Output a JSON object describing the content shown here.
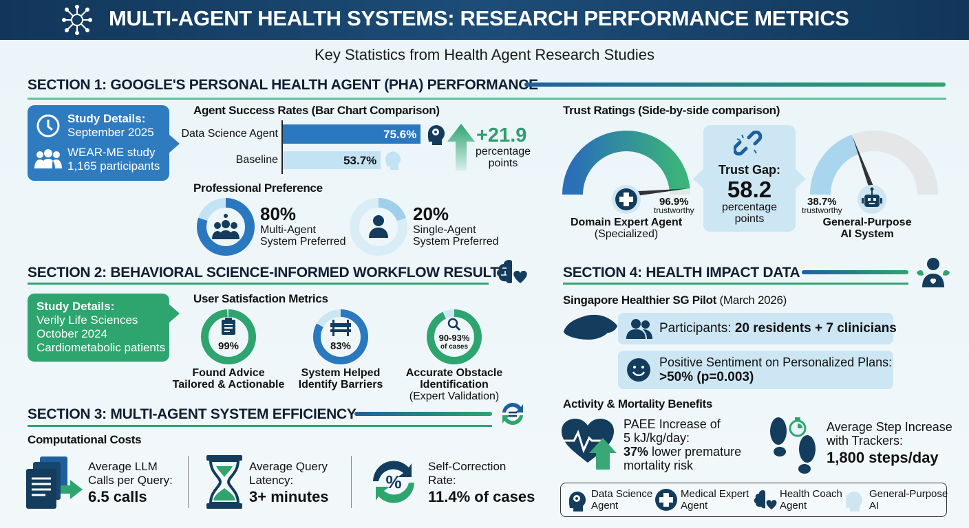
{
  "header": {
    "title": "MULTI-AGENT HEALTH SYSTEMS: RESEARCH PERFORMANCE METRICS",
    "icon": "network-agent-icon"
  },
  "subtitle": "Key Statistics from Health Agent Research Studies",
  "colors": {
    "navy": "#163f66",
    "blue": "#2a78c0",
    "light_blue": "#bfe0f3",
    "green": "#2ea56f",
    "dark_icon": "#143c5c",
    "grey": "#e4e6e8"
  },
  "section1": {
    "title": "SECTION 1: GOOGLE'S PERSONAL HEALTH AGENT (PHA) PERFORMANCE",
    "study": {
      "label": "Study Details:",
      "date": "September 2025",
      "study": "WEAR-ME study",
      "participants": "1,165 participants"
    },
    "bar_chart": {
      "title": "Agent Success Rates (Bar Chart Comparison)",
      "bars": [
        {
          "label": "Data Science Agent",
          "value": 75.6,
          "text": "75.6%"
        },
        {
          "label": "Baseline",
          "value": 53.7,
          "text": "53.7%"
        }
      ],
      "delta": "+21.9",
      "delta_unit_1": "percentage",
      "delta_unit_2": "points"
    },
    "preference": {
      "title": "Professional Preference",
      "items": [
        {
          "value": 80,
          "text": "80%",
          "l1": "Multi-Agent",
          "l2": "System Preferred"
        },
        {
          "value": 20,
          "text": "20%",
          "l1": "Single-Agent",
          "l2": "System Preferred"
        }
      ]
    },
    "trust": {
      "title": "Trust Ratings (Side-by-side comparison)",
      "expert": {
        "value": 96.9,
        "text": "96.9%",
        "sub": "trustworthy",
        "name": "Domain Expert Agent",
        "name2": "(Specialized)"
      },
      "general": {
        "value": 38.7,
        "text": "38.7%",
        "sub": "trustworthy",
        "name": "General-Purpose",
        "name2": "AI System"
      },
      "gap": {
        "label": "Trust Gap:",
        "value": "58.2",
        "u1": "percentage",
        "u2": "points"
      }
    }
  },
  "section2": {
    "title": "SECTION 2: BEHAVIORAL SCIENCE-INFORMED WORKFLOW RESULTS",
    "study": {
      "label": "Study Details:",
      "org": "Verily Life Sciences",
      "date": "October 2024",
      "pop": "Cardiometabolic patients"
    },
    "metrics_title": "User Satisfaction Metrics",
    "metrics": [
      {
        "value": 99,
        "text": "99%",
        "l1": "Found Advice",
        "l2": "Tailored & Actionable",
        "l3": "",
        "icon": "clipboard-icon"
      },
      {
        "value": 83,
        "text": "83%",
        "l1": "System Helped",
        "l2": "Identify Barriers",
        "l3": "",
        "icon": "barrier-icon"
      },
      {
        "value": 93,
        "text": "90-93%",
        "sub": "of cases",
        "l1": "Accurate Obstacle",
        "l2": "Identification",
        "l3": "(Expert Validation)",
        "icon": "magnifier-icon"
      }
    ]
  },
  "section3": {
    "title": "SECTION 3: MULTI-AGENT SYSTEM EFFICIENCY",
    "costs_title": "Computational Costs",
    "items": [
      {
        "l1": "Average LLM",
        "l2": "Calls per Query:",
        "value": "6.5 calls"
      },
      {
        "l1": "Average Query",
        "l2": "Latency:",
        "value": "3+ minutes"
      },
      {
        "l1": "Self-Correction",
        "l2": "Rate:",
        "value": "11.4% of cases"
      }
    ]
  },
  "section4": {
    "title": "SECTION 4: HEALTH IMPACT DATA",
    "pilot_bold": "Singapore Healthier SG Pilot",
    "pilot_date": " (March 2026)",
    "participants_label": "Participants: ",
    "participants_value": "20 residents + 7 clinicians",
    "sentiment_label": "Positive Sentiment on Personalized Plans:",
    "sentiment_value": ">50% (p=0.003)",
    "activity_title": "Activity & Mortality Benefits",
    "paee": {
      "l1": "PAEE Increase of",
      "l2": "5 kJ/kg/day:",
      "bold": "37%",
      "l3": " lower premature",
      "l4": "mortality risk"
    },
    "steps": {
      "l1": "Average Step Increase",
      "l2": "with Trackers:",
      "value": "1,800 steps/day"
    }
  },
  "legend": [
    {
      "l1": "Data Science",
      "l2": "Agent"
    },
    {
      "l1": "Medical Expert",
      "l2": "Agent"
    },
    {
      "l1": "Health Coach",
      "l2": "Agent"
    },
    {
      "l1": "General-Purpose",
      "l2": "AI"
    }
  ]
}
